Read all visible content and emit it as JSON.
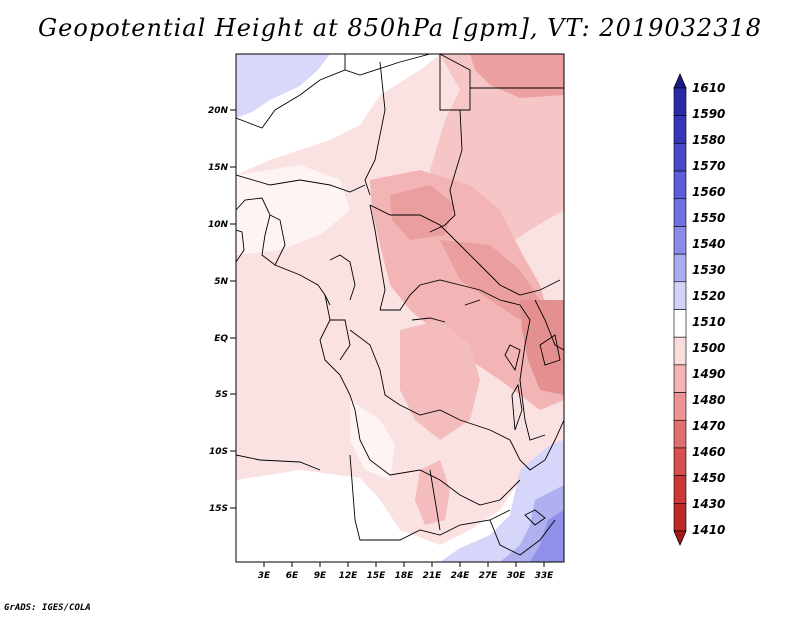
{
  "title": "Geopotential Height at 850hPa [gpm], VT: 2019032318",
  "credit": "GrADS: IGES/COLA",
  "map": {
    "lat_ticks": [
      "20N",
      "15N",
      "10N",
      "5N",
      "EQ",
      "5S",
      "10S",
      "15S"
    ],
    "lon_ticks": [
      "3E",
      "6E",
      "9E",
      "12E",
      "15E",
      "18E",
      "21E",
      "24E",
      "27E",
      "30E",
      "33E"
    ]
  },
  "colorbar": {
    "levels": [
      "1610",
      "1590",
      "1580",
      "1570",
      "1560",
      "1550",
      "1540",
      "1530",
      "1520",
      "1510",
      "1500",
      "1490",
      "1480",
      "1470",
      "1460",
      "1450",
      "1430",
      "1410"
    ],
    "colors": [
      "#1a1a8c",
      "#2a2aa8",
      "#3535b8",
      "#4848c8",
      "#5c5cd8",
      "#7070e0",
      "#8c8ce8",
      "#aaaaf0",
      "#d2d2f8",
      "#ffffff",
      "#fadcdc",
      "#f4b4b4",
      "#ec9494",
      "#e07070",
      "#d85050",
      "#cc3838",
      "#bc2828",
      "#a81818"
    ]
  },
  "colors": {
    "land_base": "#fbe2e2",
    "positive_low": "#ffffff",
    "trough": "#f2b6b6",
    "deep_trough": "#ea9d9d",
    "high_blue": "#d6d6fa",
    "high_blue_strong": "#9c9cec"
  }
}
